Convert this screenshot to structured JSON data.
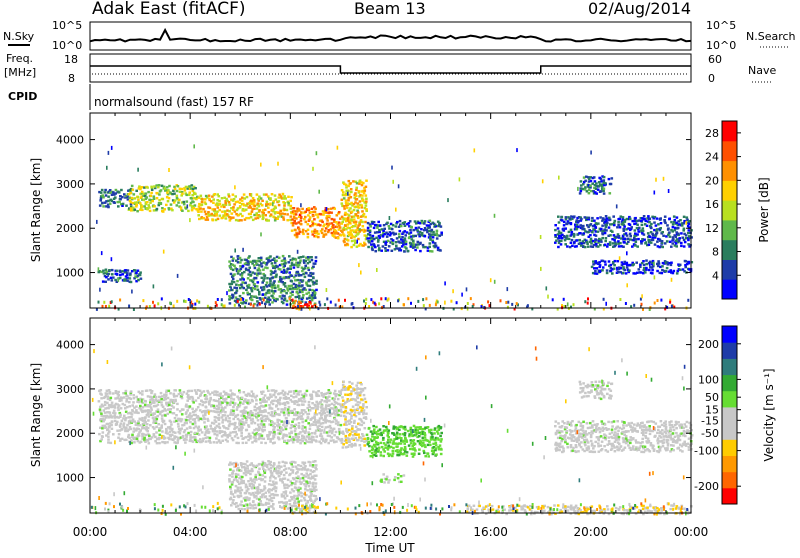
{
  "header": {
    "station": "Adak East (fitACF)",
    "beam": "Beam 13",
    "date": "02/Aug/2014"
  },
  "noise_panel": {
    "left_label": "N.Sky",
    "left_ticks": [
      "10^5",
      "10^0"
    ],
    "right_label": "N.Search",
    "right_ticks": [
      "10^5",
      "10^0"
    ]
  },
  "freq_panel": {
    "left_label_1": "Freq.",
    "left_label_2": "[MHz]",
    "left_ticks": [
      "18",
      "8"
    ],
    "right_label": "Nave",
    "right_ticks": [
      "60",
      "0"
    ]
  },
  "cpid": {
    "label": "CPID",
    "text": "normalsound (fast) 157 RF"
  },
  "colors": {
    "power": [
      "#0000ff",
      "#1e3ca8",
      "#2a7d5e",
      "#5fb84a",
      "#b8e020",
      "#ffd000",
      "#ff9000",
      "#ff5000",
      "#ff0000"
    ],
    "velocity": [
      "#ff0000",
      "#ff6600",
      "#ff9900",
      "#ffcc00",
      "#c8c8c8",
      "#c8c8c8",
      "#66dd33",
      "#33aa33",
      "#2f7c7c",
      "#1e3ca8",
      "#0000ff"
    ]
  },
  "chart_data": [
    {
      "type": "heatmap",
      "name": "power",
      "ylabel": "Slant Range [km]",
      "xlabel": "Time UT",
      "x_ticks": [
        "00:00",
        "04:00",
        "08:00",
        "12:00",
        "16:00",
        "20:00",
        "00:00"
      ],
      "y_ticks": [
        1000,
        2000,
        3000,
        4000
      ],
      "ylim": [
        200,
        4600
      ],
      "xlim_hours": [
        0,
        24
      ],
      "colorbar": {
        "label": "Power [dB]",
        "ticks": [
          4,
          8,
          12,
          16,
          20,
          24,
          28
        ],
        "range": [
          0,
          30
        ]
      },
      "echo_regions": [
        {
          "t0": 0.3,
          "t1": 1.6,
          "r0": 2500,
          "r1": 2900,
          "level": 8
        },
        {
          "t0": 1.5,
          "t1": 4.2,
          "r0": 2400,
          "r1": 3000,
          "level": 14
        },
        {
          "t0": 4.2,
          "t1": 8.0,
          "r0": 2200,
          "r1": 2800,
          "level": 18
        },
        {
          "t0": 8.0,
          "t1": 10.0,
          "r0": 1800,
          "r1": 2500,
          "level": 22
        },
        {
          "t0": 10.0,
          "t1": 11.0,
          "r0": 1600,
          "r1": 3100,
          "level": 18
        },
        {
          "t0": 11.0,
          "t1": 14.0,
          "r0": 1500,
          "r1": 2200,
          "level": 6
        },
        {
          "t0": 0.3,
          "t1": 2.0,
          "r0": 800,
          "r1": 1100,
          "level": 6
        },
        {
          "t0": 5.5,
          "t1": 9.0,
          "r0": 300,
          "r1": 1400,
          "level": 8
        },
        {
          "t0": 8.0,
          "t1": 9.0,
          "r0": 200,
          "r1": 400,
          "level": 26
        },
        {
          "t0": 18.5,
          "t1": 24.0,
          "r0": 1600,
          "r1": 2300,
          "level": 5
        },
        {
          "t0": 19.5,
          "t1": 20.8,
          "r0": 2800,
          "r1": 3200,
          "level": 6
        },
        {
          "t0": 20.0,
          "t1": 24.0,
          "r0": 1000,
          "r1": 1300,
          "level": 4
        }
      ]
    },
    {
      "type": "heatmap",
      "name": "velocity",
      "ylabel": "Slant Range [km]",
      "xlabel": "Time UT",
      "x_ticks": [
        "00:00",
        "04:00",
        "08:00",
        "12:00",
        "16:00",
        "20:00",
        "00:00"
      ],
      "y_ticks": [
        1000,
        2000,
        3000,
        4000
      ],
      "ylim": [
        200,
        4600
      ],
      "xlim_hours": [
        0,
        24
      ],
      "colorbar": {
        "label": "Velocity [m s⁻¹]",
        "ticks": [
          200,
          100,
          50,
          15,
          -15,
          -50,
          -100,
          -200
        ],
        "range": [
          -250,
          250
        ]
      },
      "echo_regions": [
        {
          "t0": 0.3,
          "t1": 10.0,
          "r0": 1800,
          "r1": 3000,
          "vel": 0
        },
        {
          "t0": 10.0,
          "t1": 11.0,
          "r0": 1700,
          "r1": 3200,
          "vel": -60
        },
        {
          "t0": 11.0,
          "t1": 14.0,
          "r0": 1500,
          "r1": 2200,
          "vel": 60
        },
        {
          "t0": 11.5,
          "t1": 12.5,
          "r0": 900,
          "r1": 1100,
          "vel": 40
        },
        {
          "t0": 5.5,
          "t1": 9.0,
          "r0": 300,
          "r1": 1400,
          "vel": 0
        },
        {
          "t0": 8.0,
          "t1": 9.0,
          "r0": 200,
          "r1": 400,
          "vel": -80
        },
        {
          "t0": 18.5,
          "t1": 24.0,
          "r0": 1600,
          "r1": 2300,
          "vel": 0
        },
        {
          "t0": 19.5,
          "t1": 20.8,
          "r0": 2800,
          "r1": 3200,
          "vel": 0
        },
        {
          "t0": 15.0,
          "t1": 24.0,
          "r0": 200,
          "r1": 400,
          "vel": -60
        }
      ]
    }
  ]
}
